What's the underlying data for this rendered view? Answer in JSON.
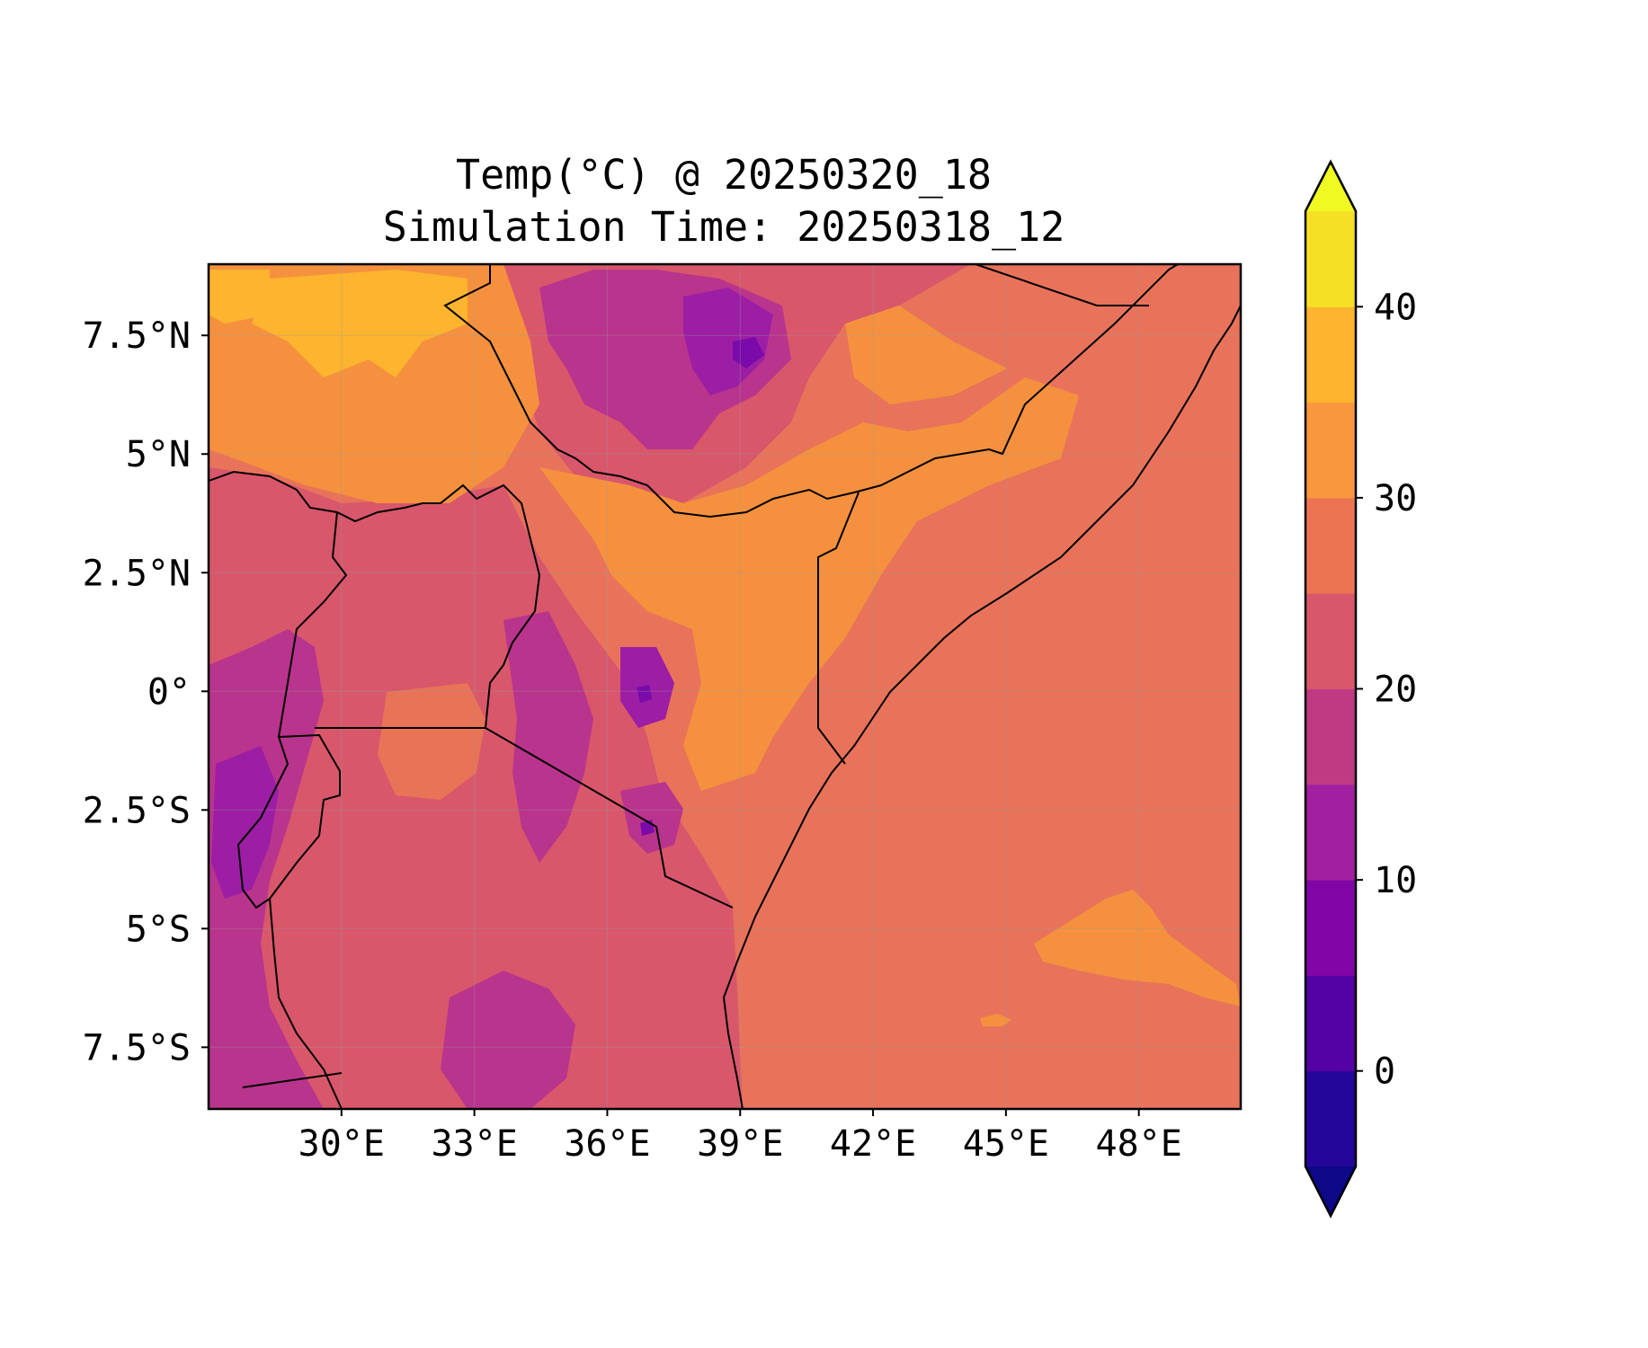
{
  "title": {
    "line1": "Temp(°C) @ 20250320_18",
    "line2": "Simulation Time: 20250318_12"
  },
  "map": {
    "lon_range": [
      27,
      50.3
    ],
    "lat_range": [
      -8.8,
      9
    ],
    "x_ticks": [
      {
        "lon": 30,
        "label": "30°E"
      },
      {
        "lon": 33,
        "label": "33°E"
      },
      {
        "lon": 36,
        "label": "36°E"
      },
      {
        "lon": 39,
        "label": "39°E"
      },
      {
        "lon": 42,
        "label": "42°E"
      },
      {
        "lon": 45,
        "label": "45°E"
      },
      {
        "lon": 48,
        "label": "48°E"
      }
    ],
    "y_ticks": [
      {
        "lat": 7.5,
        "label": "7.5°N"
      },
      {
        "lat": 5,
        "label": "5°N"
      },
      {
        "lat": 2.5,
        "label": "2.5°N"
      },
      {
        "lat": 0,
        "label": "0°"
      },
      {
        "lat": -2.5,
        "label": "2.5°S"
      },
      {
        "lat": -5,
        "label": "5°S"
      },
      {
        "lat": -7.5,
        "label": "7.5°S"
      }
    ],
    "grid": true
  },
  "colorbar": {
    "levels": [
      -5,
      0,
      5,
      10,
      15,
      20,
      25,
      30,
      35,
      40,
      45
    ],
    "colors": [
      "#25069b",
      "#5402a3",
      "#8105a7",
      "#a21fa0",
      "#c03a83",
      "#d8576b",
      "#ec7452",
      "#f9973e",
      "#fdb42f",
      "#f5e026"
    ],
    "extend_under_color": "#0d0887",
    "extend_over_color": "#f0f921",
    "tick_values": [
      0,
      10,
      20,
      30,
      40
    ],
    "tick_labels": [
      "0",
      "10",
      "20",
      "30",
      "40"
    ]
  },
  "fields": {
    "base_color": "#e87356",
    "sea_color": "#e8735a",
    "warm_color": "#f5913e",
    "hot_color": "#fdb42f",
    "cool_color": "#d8576b",
    "cold_color": "#b9348d",
    "colder_color": "#9c1ea4",
    "coldest_color": "#7a0aa9"
  }
}
